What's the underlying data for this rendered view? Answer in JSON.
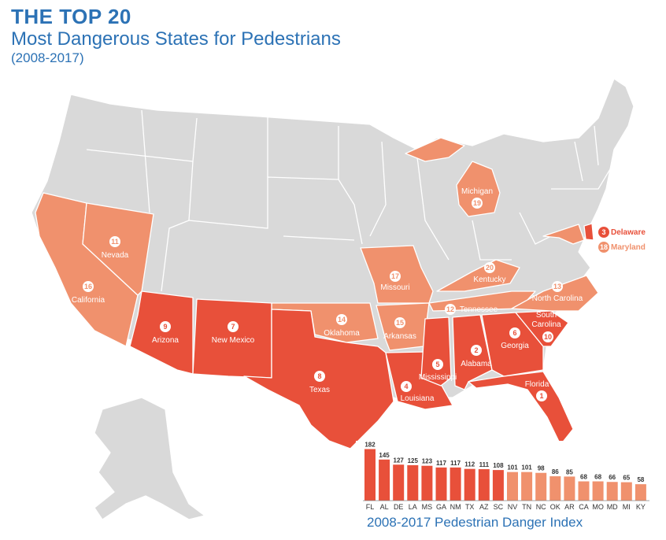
{
  "title": "THE TOP 20",
  "subtitle": "Most Dangerous States for Pedestrians",
  "period": "(2008-2017)",
  "colors": {
    "top10": "#e8503a",
    "rank11_20": "#f0916d",
    "other": "#d9d9d9"
  },
  "states": [
    {
      "rank": 1,
      "name": "Florida"
    },
    {
      "rank": 2,
      "name": "Alabama"
    },
    {
      "rank": 3,
      "name": "Delaware"
    },
    {
      "rank": 4,
      "name": "Louisiana"
    },
    {
      "rank": 5,
      "name": "Mississippi"
    },
    {
      "rank": 6,
      "name": "Georgia"
    },
    {
      "rank": 7,
      "name": "New Mexico"
    },
    {
      "rank": 8,
      "name": "Texas"
    },
    {
      "rank": 9,
      "name": "Arizona"
    },
    {
      "rank": 10,
      "name": "South Carolina"
    },
    {
      "rank": 11,
      "name": "Nevada"
    },
    {
      "rank": 12,
      "name": "Tennessee"
    },
    {
      "rank": 13,
      "name": "North Carolina"
    },
    {
      "rank": 14,
      "name": "Oklahoma"
    },
    {
      "rank": 15,
      "name": "Arkansas"
    },
    {
      "rank": 16,
      "name": "California"
    },
    {
      "rank": 17,
      "name": "Missouri"
    },
    {
      "rank": 18,
      "name": "Maryland"
    },
    {
      "rank": 19,
      "name": "Michigan"
    },
    {
      "rank": 20,
      "name": "Kentucky"
    }
  ],
  "chart_data": {
    "type": "bar",
    "title": "2008-2017 Pedestrian Danger Index",
    "categories": [
      "FL",
      "AL",
      "DE",
      "LA",
      "MS",
      "GA",
      "NM",
      "TX",
      "AZ",
      "SC",
      "NV",
      "TN",
      "NC",
      "OK",
      "AR",
      "CA",
      "MO",
      "MD",
      "MI",
      "KY"
    ],
    "values": [
      182,
      145,
      127,
      125,
      123,
      117,
      117,
      112,
      111,
      108,
      101,
      101,
      98,
      86,
      85,
      68,
      68,
      66,
      65,
      58
    ]
  }
}
